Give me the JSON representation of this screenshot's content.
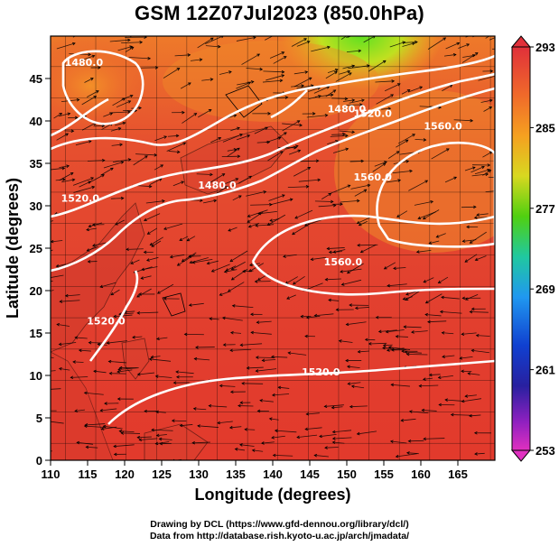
{
  "title": "GSM 12Z07Jul2023 (850.0hPa)",
  "x_axis": {
    "label": "Longitude (degrees)",
    "ticks": [
      "110",
      "115",
      "120",
      "125",
      "130",
      "135",
      "140",
      "145",
      "150",
      "155",
      "160",
      "165"
    ]
  },
  "y_axis": {
    "label": "Latitude  (degrees)",
    "ticks": [
      "0",
      "5",
      "10",
      "15",
      "20",
      "25",
      "30",
      "35",
      "40",
      "45"
    ]
  },
  "colorbar": {
    "labels": [
      "293",
      "285",
      "277",
      "269",
      "261",
      "253"
    ],
    "colors": [
      "#e0303a",
      "#f07a28",
      "#f5b020",
      "#a0e020",
      "#40d010",
      "#20c8b0",
      "#2090f0",
      "#1040d0",
      "#2020a0",
      "#9020c0",
      "#e030c0"
    ]
  },
  "contour_labels": [
    "1480.0",
    "1520.0",
    "1480.0",
    "1520.0",
    "1560.0",
    "1560.0",
    "1520.0",
    "1480.0",
    "1560.0",
    "1520.0"
  ],
  "credits": {
    "line1": "Drawing by DCL (https://www.gfd-dennou.org/library/dcl/)",
    "line2": "Data from http://database.rish.kyoto-u.ac.jp/arch/jmadata/"
  },
  "chart_data": {
    "type": "heatmap",
    "title": "GSM 12Z07Jul2023 (850.0hPa)",
    "xlabel": "Longitude (degrees)",
    "ylabel": "Latitude  (degrees)",
    "xlim": [
      110,
      170
    ],
    "ylim": [
      0,
      50
    ],
    "colorbar_range": [
      253,
      293
    ],
    "colorbar_ticks": [
      293,
      285,
      277,
      269,
      261,
      253
    ],
    "contours": [
      {
        "label": "1480.0",
        "lon": 114.5,
        "lat": 46.5
      },
      {
        "label": "1520.0",
        "lon": 114.0,
        "lat": 30.5
      },
      {
        "label": "1480.0",
        "lon": 132.5,
        "lat": 32.0
      },
      {
        "label": "1520.0",
        "lon": 153.5,
        "lat": 40.5
      },
      {
        "label": "1560.0",
        "lon": 153.5,
        "lat": 33.0
      },
      {
        "label": "1560.0",
        "lon": 149.5,
        "lat": 23.0
      },
      {
        "label": "1520.0",
        "lon": 117.5,
        "lat": 16.0
      },
      {
        "label": "1480.0",
        "lon": 150.0,
        "lat": 41.0
      },
      {
        "label": "1560.0",
        "lon": 163.0,
        "lat": 39.0
      },
      {
        "label": "1520.0",
        "lon": 146.5,
        "lat": 10.0
      }
    ],
    "grid": true
  }
}
